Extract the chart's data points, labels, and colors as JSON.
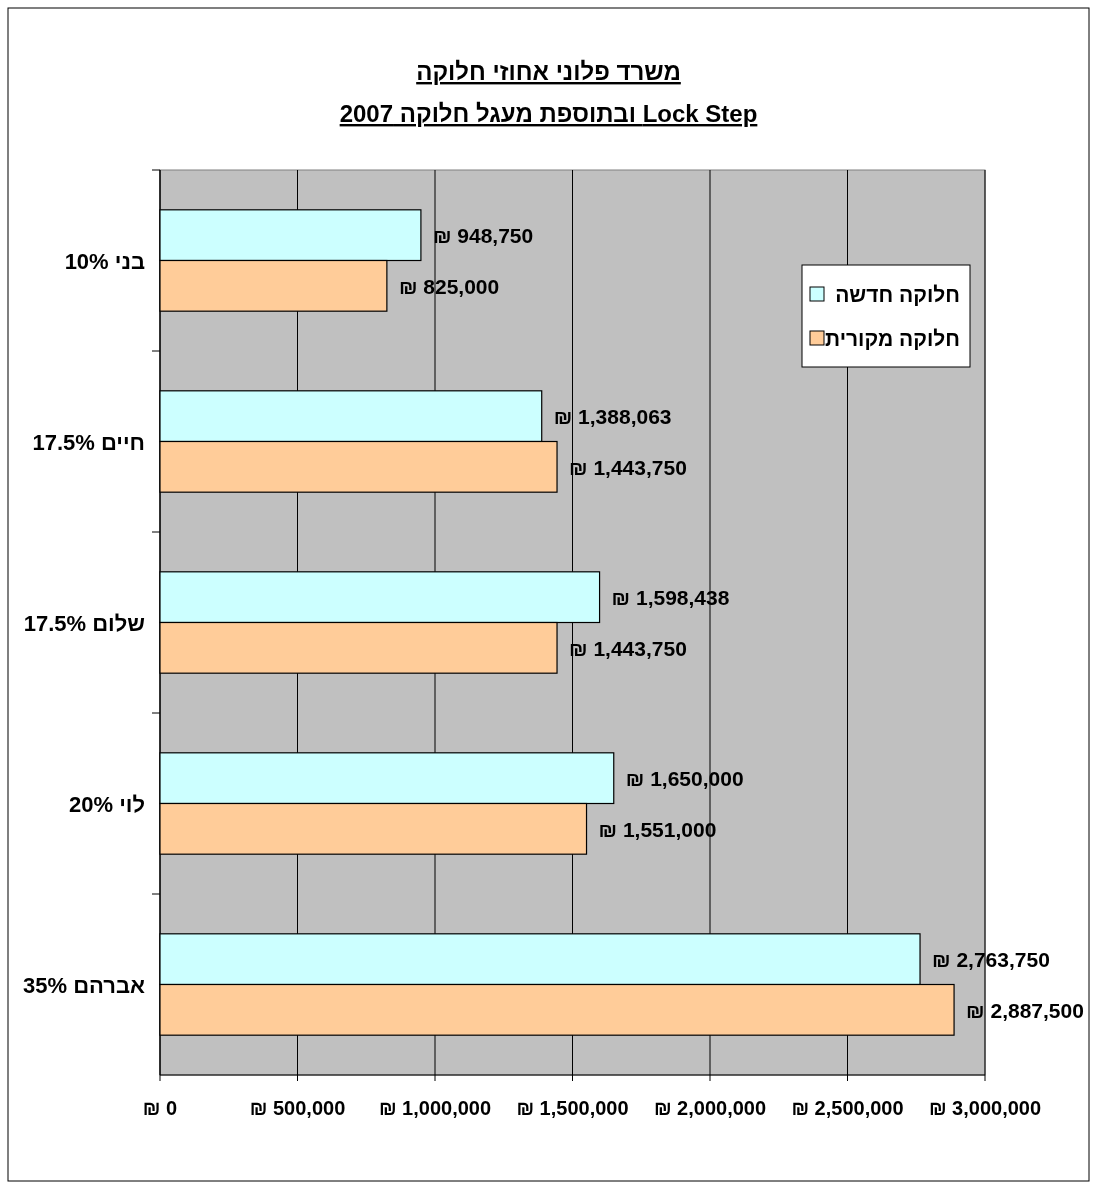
{
  "chart_data": {
    "type": "bar",
    "orientation": "horizontal",
    "title": "משרד פלוני אחוזי חלוקה\nLock Step ובתוספת מעגל חלוקה 2007",
    "categories": [
      "בני 10%",
      "חיים 17.5%",
      "שלום 17.5%",
      "לוי 20%",
      "אברהם 35%"
    ],
    "series": [
      {
        "name": "חלוקה חדשה",
        "color": "#ccffff",
        "values": [
          948750,
          1388063,
          1598438,
          1650000,
          2763750
        ],
        "value_labels": [
          "₪ 948,750",
          "₪ 1,388,063",
          "₪ 1,598,438",
          "₪ 1,650,000",
          "₪ 2,763,750"
        ]
      },
      {
        "name": "חלוקה מקורית",
        "color": "#ffcc99",
        "values": [
          825000,
          1443750,
          1443750,
          1551000,
          2887500
        ],
        "value_labels": [
          "₪ 825,000",
          "₪ 1,443,750",
          "₪ 1,443,750",
          "₪ 1,551,000",
          "₪ 2,887,500"
        ]
      }
    ],
    "xlim": [
      0,
      3000000
    ],
    "xticks": [
      {
        "value": 0,
        "label": "₪ 0"
      },
      {
        "value": 500000,
        "label": "₪ 500,000"
      },
      {
        "value": 1000000,
        "label": "₪ 1,000,000"
      },
      {
        "value": 1500000,
        "label": "₪ 1,500,000"
      },
      {
        "value": 2000000,
        "label": "₪ 2,000,000"
      },
      {
        "value": 2500000,
        "label": "₪ 2,500,000"
      },
      {
        "value": 3000000,
        "label": "₪ 3,000,000"
      }
    ],
    "grid": "x",
    "legend": "top right"
  }
}
